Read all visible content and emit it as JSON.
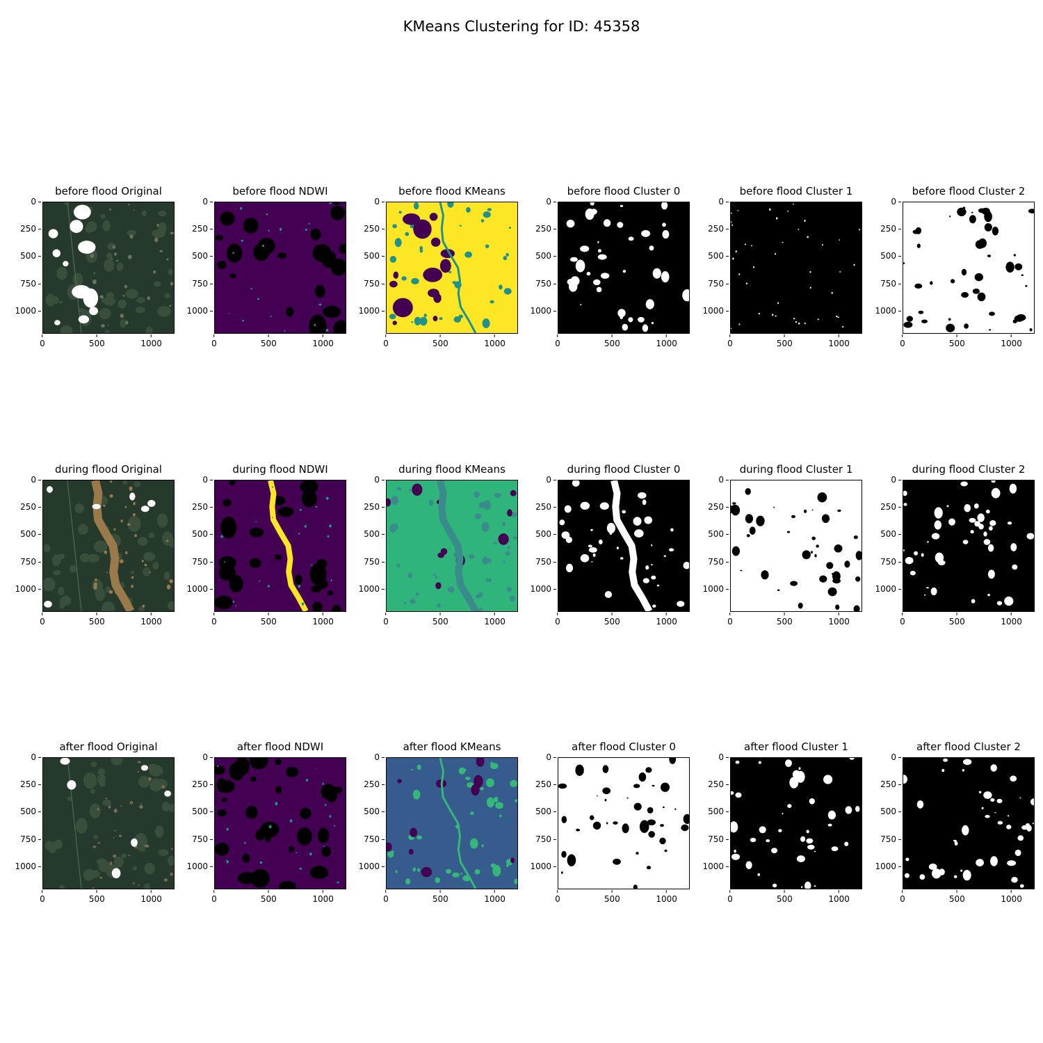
{
  "title": "KMeans Clustering for ID: 45358",
  "chart_data": {
    "type": "heatmap",
    "image_extent": [
      1200,
      1200
    ],
    "xticks": [
      "0",
      "500",
      "1000"
    ],
    "yticks": [
      "0",
      "250",
      "500",
      "750",
      "1000"
    ],
    "xtick_values": [
      0,
      500,
      1000
    ],
    "ytick_values": [
      0,
      250,
      500,
      750,
      1000
    ],
    "rows": [
      {
        "stage": "before flood",
        "panels": [
          {
            "title": "before flood Original",
            "kind": "rgb",
            "palette": [
              "#253a2c",
              "#3a4f3b",
              "#6b7060",
              "#ffffff"
            ]
          },
          {
            "title": "before flood NDWI",
            "kind": "ndwi",
            "palette": [
              "#440154",
              "#000000",
              "#21918c",
              "#fde725"
            ]
          },
          {
            "title": "before flood KMeans",
            "kind": "kmeans",
            "palette": [
              "#fde725",
              "#440154",
              "#21918c"
            ]
          },
          {
            "title": "before flood Cluster 0",
            "kind": "binary",
            "palette": [
              "#000000",
              "#ffffff"
            ]
          },
          {
            "title": "before flood Cluster 1",
            "kind": "binary",
            "palette": [
              "#000000",
              "#ffffff"
            ]
          },
          {
            "title": "before flood Cluster 2",
            "kind": "binary",
            "palette": [
              "#ffffff",
              "#000000"
            ]
          }
        ]
      },
      {
        "stage": "during flood",
        "panels": [
          {
            "title": "during flood Original",
            "kind": "rgb",
            "palette": [
              "#263a2c",
              "#3a4f3b",
              "#9a7a4a",
              "#ffffff"
            ]
          },
          {
            "title": "during flood NDWI",
            "kind": "ndwi",
            "palette": [
              "#440154",
              "#000000",
              "#21918c",
              "#fde725"
            ]
          },
          {
            "title": "during flood KMeans",
            "kind": "kmeans",
            "palette": [
              "#2fb47c",
              "#440154",
              "#3b8a8c"
            ]
          },
          {
            "title": "during flood Cluster 0",
            "kind": "binary",
            "palette": [
              "#000000",
              "#ffffff"
            ]
          },
          {
            "title": "during flood Cluster 1",
            "kind": "binary",
            "palette": [
              "#ffffff",
              "#000000"
            ]
          },
          {
            "title": "during flood Cluster 2",
            "kind": "binary",
            "palette": [
              "#000000",
              "#ffffff"
            ]
          }
        ]
      },
      {
        "stage": "after flood",
        "panels": [
          {
            "title": "after flood Original",
            "kind": "rgb",
            "palette": [
              "#253a2c",
              "#3a4f3b",
              "#7a6a55",
              "#ffffff"
            ]
          },
          {
            "title": "after flood NDWI",
            "kind": "ndwi",
            "palette": [
              "#440154",
              "#000000",
              "#21918c",
              "#fde725"
            ]
          },
          {
            "title": "after flood KMeans",
            "kind": "kmeans",
            "palette": [
              "#365c8d",
              "#440154",
              "#35b779"
            ]
          },
          {
            "title": "after flood Cluster 0",
            "kind": "binary",
            "palette": [
              "#ffffff",
              "#000000"
            ]
          },
          {
            "title": "after flood Cluster 1",
            "kind": "binary",
            "palette": [
              "#000000",
              "#ffffff"
            ]
          },
          {
            "title": "after flood Cluster 2",
            "kind": "binary",
            "palette": [
              "#000000",
              "#ffffff"
            ]
          }
        ]
      }
    ]
  }
}
